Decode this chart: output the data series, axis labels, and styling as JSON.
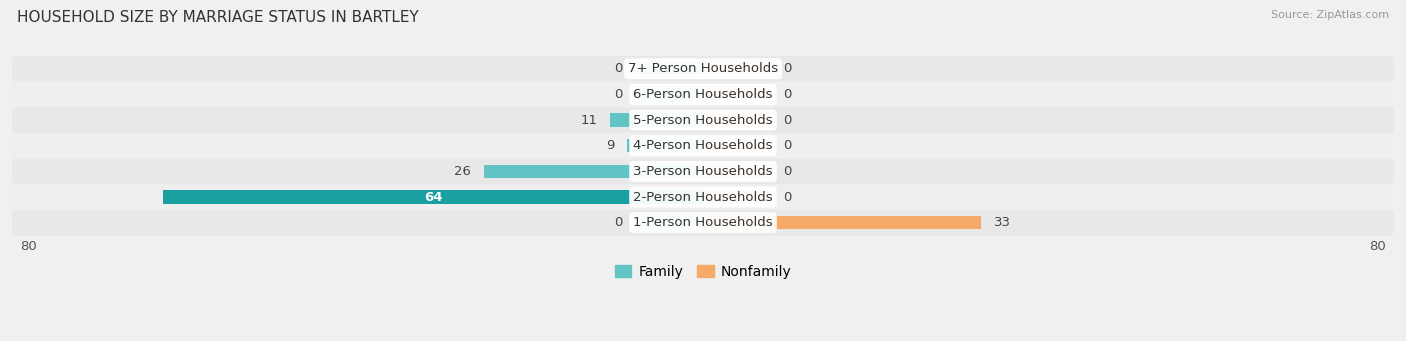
{
  "title": "HOUSEHOLD SIZE BY MARRIAGE STATUS IN BARTLEY",
  "source": "Source: ZipAtlas.com",
  "categories": [
    "7+ Person Households",
    "6-Person Households",
    "5-Person Households",
    "4-Person Households",
    "3-Person Households",
    "2-Person Households",
    "1-Person Households"
  ],
  "family_values": [
    0,
    0,
    11,
    9,
    26,
    64,
    0
  ],
  "nonfamily_values": [
    0,
    0,
    0,
    0,
    0,
    0,
    33
  ],
  "family_color_normal": "#62c4c4",
  "family_color_large": "#1aa0a0",
  "nonfamily_color": "#f5aa6a",
  "nonfamily_color_small": "#f5c89a",
  "stub_family_color": "#7fcece",
  "stub_nonfamily_color": "#f7c49c",
  "xlim": 80,
  "bar_height": 0.52,
  "stub_size": 8,
  "row_color_even": "#e8e8e8",
  "row_color_odd": "#efefef",
  "label_fontsize": 9.5,
  "value_fontsize": 9.5,
  "title_fontsize": 11,
  "legend_fontsize": 10
}
